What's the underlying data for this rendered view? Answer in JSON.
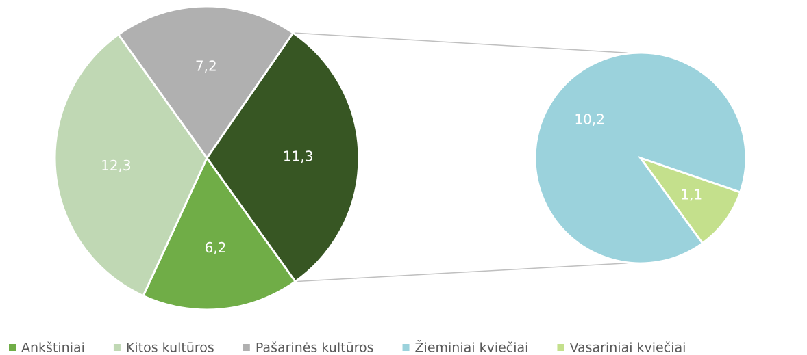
{
  "chart_data": {
    "type": "pie",
    "categories": [
      null,
      "Ankštiniai",
      "Kitos kultūros",
      "Pašarinės kultūros"
    ],
    "values": [
      11.3,
      6.2,
      12.3,
      7.2
    ],
    "value_labels": [
      "11,3",
      "6,2",
      "12,3",
      "7,2"
    ],
    "colors": [
      "#375623",
      "#70ad47",
      "#c0d8b4",
      "#b0b0b0"
    ],
    "secondary": {
      "categories": [
        "Žieminiai kviečiai",
        "Vasariniai kviečiai"
      ],
      "values": [
        10.2,
        1.1
      ],
      "value_labels": [
        "10,2",
        "1,1"
      ],
      "colors": [
        "#9bd2dc",
        "#c4e08c"
      ]
    }
  }
}
